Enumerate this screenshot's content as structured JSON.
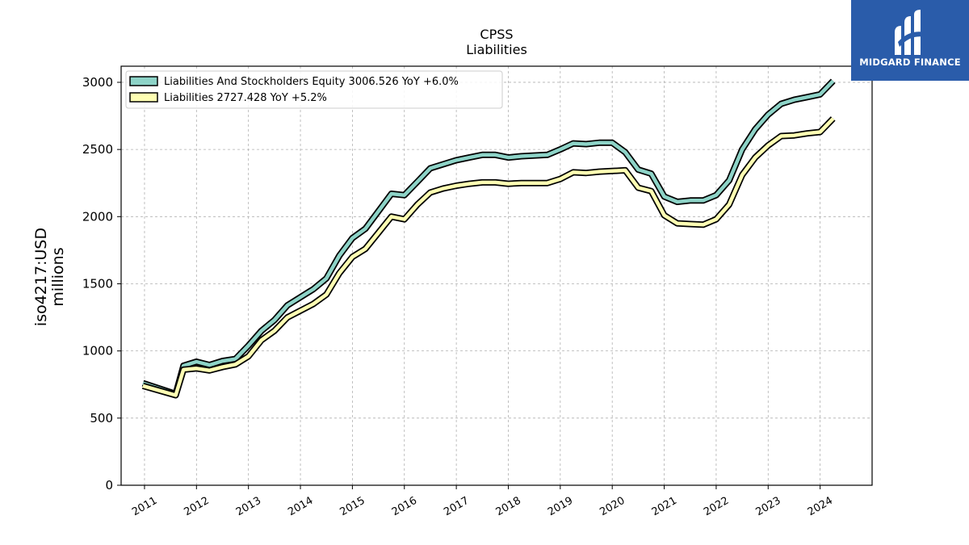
{
  "chart_data": {
    "type": "line",
    "title": "CPSS",
    "subtitle": "Liabilities",
    "ylabel_line1": "iso4217:USD",
    "ylabel_line2": "millions",
    "xlabel": "",
    "ylim": [
      0,
      3120
    ],
    "yticks": [
      "0",
      "500",
      "1000",
      "1500",
      "2000",
      "2500",
      "3000"
    ],
    "xticks": [
      "2011",
      "2012",
      "2013",
      "2014",
      "2015",
      "2016",
      "2017",
      "2018",
      "2019",
      "2020",
      "2021",
      "2022",
      "2023",
      "2024"
    ],
    "grid": true,
    "legend_position": "top-left",
    "x": [
      2010.97,
      2011.6,
      2011.75,
      2012.0,
      2012.25,
      2012.5,
      2012.75,
      2013.0,
      2013.25,
      2013.5,
      2013.75,
      2014.0,
      2014.25,
      2014.5,
      2014.75,
      2015.0,
      2015.25,
      2015.5,
      2015.75,
      2016.0,
      2016.25,
      2016.5,
      2016.75,
      2017.0,
      2017.25,
      2017.5,
      2017.75,
      2018.0,
      2018.25,
      2018.5,
      2018.75,
      2019.0,
      2019.25,
      2019.5,
      2019.75,
      2020.0,
      2020.25,
      2020.5,
      2020.75,
      2021.0,
      2021.25,
      2021.5,
      2021.75,
      2022.0,
      2022.25,
      2022.5,
      2022.75,
      2023.0,
      2023.25,
      2023.5,
      2023.75,
      2024.0,
      2024.25
    ],
    "series": [
      {
        "name": "Liabilities And Stockholders Equity",
        "legend": "Liabilities And Stockholders Equity  3006.526 YoY +6.0%",
        "color": "#8dd3c7",
        "values": [
          760,
          680,
          890,
          920,
          895,
          925,
          940,
          1040,
          1150,
          1230,
          1340,
          1400,
          1460,
          1540,
          1710,
          1840,
          1910,
          2040,
          2170,
          2160,
          2260,
          2360,
          2390,
          2420,
          2440,
          2460,
          2460,
          2440,
          2450,
          2455,
          2460,
          2500,
          2545,
          2540,
          2550,
          2550,
          2480,
          2350,
          2320,
          2150,
          2110,
          2120,
          2120,
          2160,
          2270,
          2500,
          2650,
          2760,
          2840,
          2870,
          2890,
          2910,
          3010
        ]
      },
      {
        "name": "Liabilities",
        "legend": "Liabilities  2727.428 YoY +5.2%",
        "color": "#ffffb3",
        "values": [
          740,
          670,
          860,
          870,
          855,
          880,
          900,
          960,
          1080,
          1150,
          1250,
          1300,
          1350,
          1420,
          1580,
          1700,
          1760,
          1880,
          2000,
          1980,
          2090,
          2180,
          2210,
          2230,
          2245,
          2255,
          2255,
          2245,
          2250,
          2250,
          2250,
          2280,
          2330,
          2325,
          2335,
          2340,
          2345,
          2215,
          2190,
          2010,
          1950,
          1945,
          1940,
          1980,
          2090,
          2310,
          2440,
          2530,
          2600,
          2605,
          2620,
          2630,
          2730
        ]
      }
    ]
  },
  "logo": {
    "brand": "MIDGARD FINANCE"
  }
}
